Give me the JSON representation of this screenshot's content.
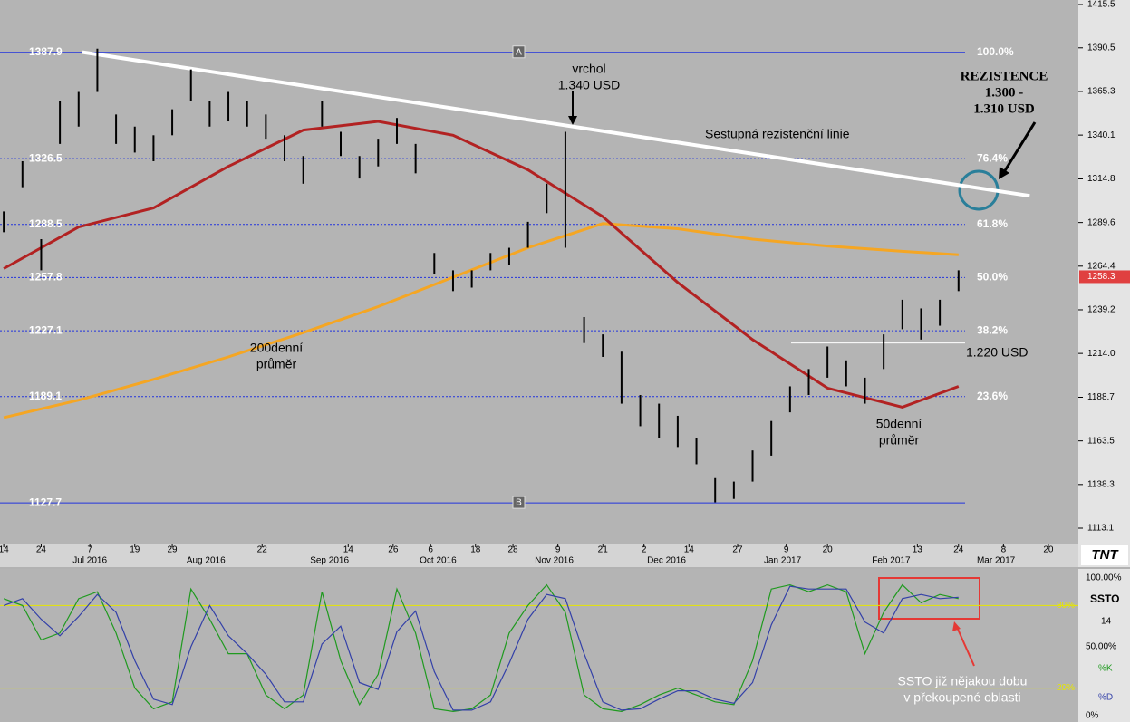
{
  "chart_data": [
    {
      "type": "hilo",
      "color": "#000000",
      "x": [
        "2016-06-14",
        "2016-06-19",
        "2016-06-24",
        "2016-06-29",
        "2016-07-04",
        "2016-07-09",
        "2016-07-14",
        "2016-07-19",
        "2016-07-24",
        "2016-07-29",
        "2016-08-03",
        "2016-08-08",
        "2016-08-13",
        "2016-08-18",
        "2016-08-23",
        "2016-08-28",
        "2016-09-02",
        "2016-09-07",
        "2016-09-12",
        "2016-09-17",
        "2016-09-22",
        "2016-09-27",
        "2016-10-02",
        "2016-10-07",
        "2016-10-12",
        "2016-10-17",
        "2016-10-22",
        "2016-10-27",
        "2016-11-01",
        "2016-11-06",
        "2016-11-11",
        "2016-11-16",
        "2016-11-21",
        "2016-11-26",
        "2016-12-01",
        "2016-12-06",
        "2016-12-11",
        "2016-12-16",
        "2016-12-21",
        "2016-12-26",
        "2016-12-31",
        "2017-01-05",
        "2017-01-10",
        "2017-01-15",
        "2017-01-20",
        "2017-01-25",
        "2017-01-30",
        "2017-02-04",
        "2017-02-09",
        "2017-02-14",
        "2017-02-19",
        "2017-02-24"
      ],
      "low": [
        1284,
        1310,
        1262,
        1335,
        1345,
        1365,
        1335,
        1330,
        1325,
        1340,
        1360,
        1345,
        1348,
        1345,
        1338,
        1325,
        1312,
        1345,
        1328,
        1315,
        1322,
        1335,
        1318,
        1260,
        1250,
        1252,
        1262,
        1265,
        1275,
        1295,
        1275,
        1220,
        1212,
        1185,
        1172,
        1165,
        1160,
        1150,
        1128,
        1130,
        1140,
        1155,
        1180,
        1190,
        1200,
        1195,
        1185,
        1205,
        1228,
        1222,
        1230,
        1250
      ],
      "high": [
        1296,
        1325,
        1280,
        1360,
        1365,
        1390,
        1352,
        1345,
        1340,
        1355,
        1378,
        1360,
        1365,
        1360,
        1352,
        1340,
        1328,
        1360,
        1342,
        1328,
        1338,
        1350,
        1335,
        1272,
        1262,
        1262,
        1272,
        1275,
        1290,
        1312,
        1342,
        1235,
        1225,
        1215,
        1190,
        1185,
        1178,
        1165,
        1142,
        1140,
        1158,
        1175,
        1195,
        1205,
        1218,
        1210,
        1200,
        1225,
        1245,
        1240,
        1245,
        1262
      ],
      "ylim": [
        1113.1,
        1415.5
      ],
      "yticks": [
        {
          "value": 1415.5,
          "label": "1415.5"
        },
        1390.5,
        1365.3,
        1340.1,
        1314.8,
        1289.6,
        1264.4,
        1239.2,
        {
          "value": 1214,
          "label": "1214.0"
        },
        1188.7,
        1163.5,
        1138.3,
        1113.1
      ],
      "xlim": [
        "2016-06-13",
        "2017-03-28"
      ],
      "xticks": [
        {
          "value": "2016-06-14",
          "label": "14"
        },
        {
          "value": "2016-06-24",
          "label": "24"
        },
        {
          "value": "2016-07-07",
          "label": "7"
        },
        {
          "value": "2016-07-19",
          "label": "19"
        },
        {
          "value": "2016-07-29",
          "label": "29"
        },
        {
          "value": "2016-08-22",
          "label": "22"
        },
        {
          "value": "2016-09-14",
          "label": "14"
        },
        {
          "value": "2016-09-26",
          "label": "26"
        },
        {
          "value": "2016-10-06",
          "label": "6"
        },
        {
          "value": "2016-10-18",
          "label": "18"
        },
        {
          "value": "2016-10-28",
          "label": "28"
        },
        {
          "value": "2016-11-09",
          "label": "9"
        },
        {
          "value": "2016-11-21",
          "label": "21"
        },
        {
          "value": "2016-12-02",
          "label": "2"
        },
        {
          "value": "2016-12-14",
          "label": "14"
        },
        {
          "value": "2016-12-27",
          "label": "27"
        },
        {
          "value": "2017-01-09",
          "label": "9"
        },
        {
          "value": "2017-01-20",
          "label": "20"
        },
        {
          "value": "2017-02-13",
          "label": "13"
        },
        {
          "value": "2017-02-24",
          "label": "24"
        },
        {
          "value": "2017-03-08",
          "label": "8"
        },
        {
          "value": "2017-03-20",
          "label": "20"
        }
      ],
      "months": [
        {
          "value": "2016-07-07",
          "label": "Jul 2016"
        },
        {
          "value": "2016-08-07",
          "label": "Aug 2016"
        },
        {
          "value": "2016-09-09",
          "label": "Sep 2016"
        },
        {
          "value": "2016-10-08",
          "label": "Oct 2016"
        },
        {
          "value": "2016-11-08",
          "label": "Nov 2016"
        },
        {
          "value": "2016-12-08",
          "label": "Dec 2016"
        },
        {
          "value": "2017-01-08",
          "label": "Jan 2017"
        },
        {
          "value": "2017-02-06",
          "label": "Feb 2017"
        },
        {
          "value": "2017-03-06",
          "label": "Mar 2017"
        }
      ],
      "moving_averages": [
        {
          "lines": [
            "200denní",
            "průměr"
          ],
          "color": "#f5a623",
          "x": [
            "2016-06-14",
            "2016-07-04",
            "2016-07-24",
            "2016-08-13",
            "2016-09-02",
            "2016-09-22",
            "2016-10-12",
            "2016-11-01",
            "2016-11-21",
            "2016-12-11",
            "2016-12-31",
            "2017-01-20",
            "2017-02-09",
            "2017-02-24"
          ],
          "values": [
            1177,
            1187,
            1199,
            1212,
            1226,
            1241,
            1258,
            1275,
            1289,
            1286,
            1280,
            1276,
            1273,
            1271
          ]
        },
        {
          "lines": [
            "50denní",
            "průměr"
          ],
          "color": "#b22222",
          "x": [
            "2016-06-14",
            "2016-07-04",
            "2016-07-24",
            "2016-08-13",
            "2016-09-02",
            "2016-09-22",
            "2016-10-12",
            "2016-11-01",
            "2016-11-21",
            "2016-12-11",
            "2016-12-31",
            "2017-01-20",
            "2017-02-09",
            "2017-02-24"
          ],
          "values": [
            1263,
            1287,
            1298,
            1322,
            1343,
            1348,
            1340,
            1320,
            1293,
            1255,
            1222,
            1194,
            1183,
            1195
          ]
        }
      ],
      "fib_levels": [
        {
          "price": 1387.9,
          "ratio": "100.0%"
        },
        {
          "price": 1326.5,
          "ratio": "76.4%"
        },
        {
          "price": 1288.5,
          "ratio": "61.8%"
        },
        {
          "price": 1257.8,
          "ratio": "50.0%"
        },
        {
          "price": 1227.1,
          "ratio": "38.2%"
        },
        {
          "price": 1189.1,
          "ratio": "23.6%"
        },
        {
          "price": 1127.7,
          "ratio": null
        }
      ],
      "fib_anchors": [
        "A",
        "B"
      ],
      "trendline": {
        "label": "Sestupná rezistenční linie",
        "x": [
          "2016-07-05",
          "2017-03-15"
        ],
        "values": [
          1388,
          1305
        ]
      },
      "peak": {
        "lines": [
          "vrchol",
          "1.340 USD"
        ]
      },
      "resistance_zone": {
        "lines": [
          "REZISTENCE",
          "1.300 -",
          "1.310 USD"
        ]
      },
      "support": {
        "label": "1.220 USD",
        "value": 1220
      },
      "last": 1258.3,
      "logo": "TNT"
    },
    {
      "type": "line",
      "title": "SSTO",
      "period": 14,
      "ylim": [
        0,
        100
      ],
      "yticks": [
        {
          "value": 100,
          "label": "100.00%"
        },
        {
          "value": 80,
          "label": "80%"
        },
        {
          "value": 50,
          "label": "50.00%"
        },
        {
          "value": 20,
          "label": "20%"
        },
        {
          "value": 0,
          "label": "0%"
        }
      ],
      "levels": [
        80,
        20
      ],
      "level_color": "#e6e600",
      "series": [
        {
          "name": "%K",
          "color": "#1f9a1f",
          "values": [
            85,
            80,
            55,
            60,
            85,
            90,
            60,
            20,
            5,
            10,
            92,
            70,
            45,
            45,
            15,
            5,
            15,
            90,
            40,
            8,
            30,
            92,
            60,
            5,
            3,
            5,
            15,
            60,
            80,
            95,
            75,
            15,
            5,
            3,
            8,
            15,
            20,
            15,
            10,
            8,
            40,
            92,
            95,
            90,
            95,
            90,
            45,
            75,
            95,
            82,
            88,
            85
          ]
        },
        {
          "name": "%D",
          "color": "#3340a8",
          "values": [
            80,
            85,
            70,
            58,
            72,
            88,
            75,
            40,
            12,
            8,
            50,
            80,
            58,
            45,
            30,
            10,
            10,
            52,
            65,
            24,
            19,
            61,
            76,
            32,
            4,
            4,
            10,
            38,
            70,
            88,
            85,
            45,
            10,
            4,
            5,
            12,
            18,
            18,
            12,
            9,
            24,
            66,
            94,
            92,
            92,
            92,
            68,
            60,
            85,
            88,
            85,
            86
          ]
        }
      ],
      "annotation": {
        "lines": [
          "SSTO již nějakou dobu",
          "v překoupené oblasti"
        ]
      }
    }
  ]
}
